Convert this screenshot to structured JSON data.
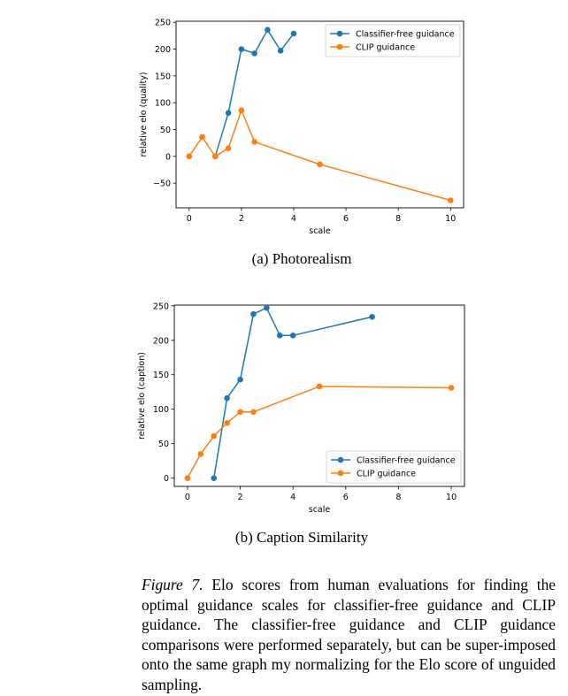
{
  "chart_data": [
    {
      "type": "line",
      "title": "",
      "xlabel": "scale",
      "ylabel": "relative elo (quality)",
      "xlim": [
        -0.5,
        10.5
      ],
      "ylim": [
        -96,
        252
      ],
      "xticks": [
        0,
        2,
        4,
        6,
        8,
        10
      ],
      "yticks": [
        -50,
        0,
        50,
        100,
        150,
        200,
        250
      ],
      "ytick_labels": [
        "−50",
        "0",
        "50",
        "100",
        "150",
        "200",
        "250"
      ],
      "grid": false,
      "legend_position": "top-right",
      "series": [
        {
          "name": "Classifier-free guidance",
          "color": "#1f77b4",
          "x": [
            1,
            1.5,
            2,
            2.5,
            3,
            3.5,
            4
          ],
          "y": [
            0,
            81,
            200,
            192,
            236,
            197,
            229
          ]
        },
        {
          "name": "CLIP guidance",
          "color": "#ff7f0e",
          "x": [
            0,
            0.5,
            1,
            1.5,
            2,
            2.5,
            5,
            10
          ],
          "y": [
            0,
            36,
            0,
            15,
            86,
            27,
            -15,
            -82
          ]
        }
      ],
      "subcaption": "(a) Photorealism"
    },
    {
      "type": "line",
      "title": "",
      "xlabel": "scale",
      "ylabel": "relative elo (caption)",
      "xlim": [
        -0.5,
        10.5
      ],
      "ylim": [
        -12,
        251
      ],
      "xticks": [
        0,
        2,
        4,
        6,
        8,
        10
      ],
      "yticks": [
        0,
        50,
        100,
        150,
        200,
        250
      ],
      "ytick_labels": [
        "0",
        "50",
        "100",
        "150",
        "200",
        "250"
      ],
      "grid": false,
      "legend_position": "bottom-right",
      "series": [
        {
          "name": "Classifier-free guidance",
          "color": "#1f77b4",
          "x": [
            1,
            1.5,
            2,
            2.5,
            3,
            3.5,
            4,
            7
          ],
          "y": [
            0,
            116,
            143,
            238,
            247,
            207,
            207,
            234
          ]
        },
        {
          "name": "CLIP guidance",
          "color": "#ff7f0e",
          "x": [
            0,
            0.5,
            1,
            1.5,
            2,
            2.5,
            5,
            10
          ],
          "y": [
            0,
            35,
            61,
            80,
            96,
            96,
            133,
            131
          ]
        }
      ],
      "subcaption": "(b) Caption Similarity"
    }
  ],
  "figure_caption": {
    "label": "Figure 7.",
    "text": " Elo scores from human evaluations for finding the optimal guidance scales for classifier-free guidance and CLIP guidance. The classifier-free guidance and CLIP guidance comparisons were performed separately, but can be super-imposed onto the same graph my normalizing for the Elo score of unguided sampling."
  }
}
